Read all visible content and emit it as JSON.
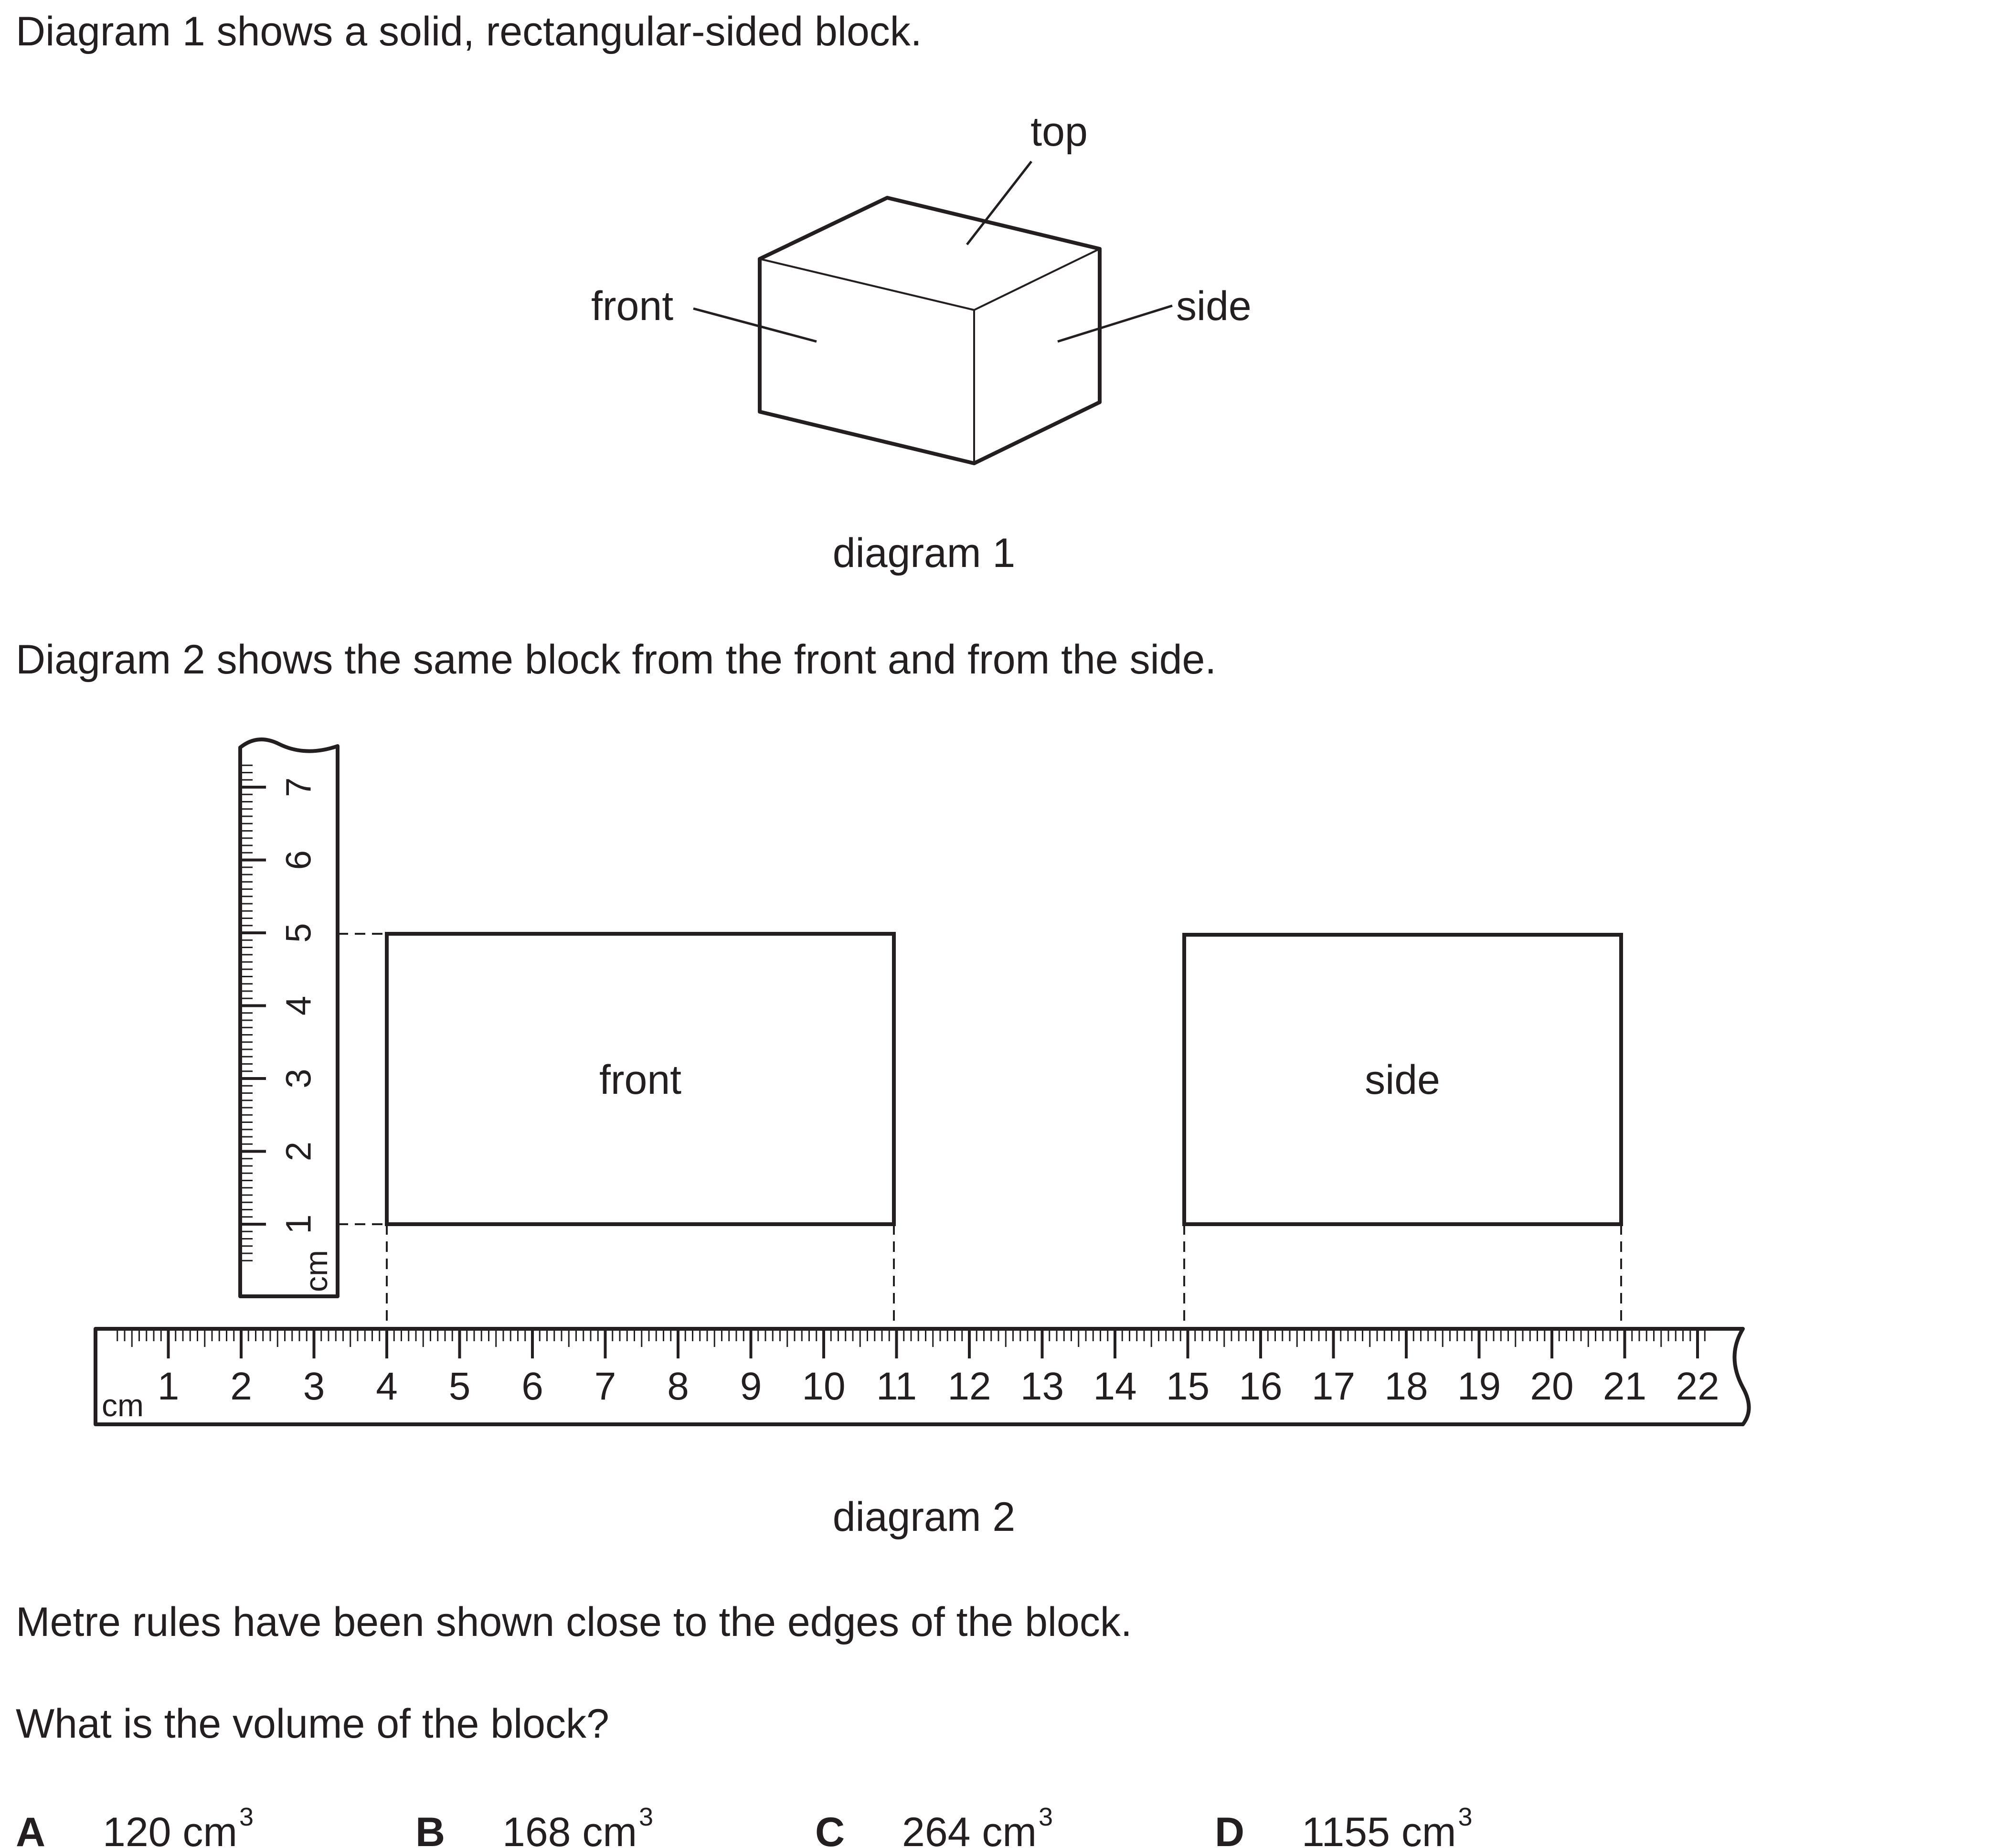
{
  "intro1": "Diagram 1 shows a solid, rectangular-sided block.",
  "diagram1": {
    "label_top": "top",
    "label_front": "front",
    "label_side": "side",
    "caption": "diagram 1"
  },
  "intro2": "Diagram 2 shows the same block from the front and from the side.",
  "diagram2": {
    "vertical_ruler": {
      "unit": "cm",
      "ticks": [
        "1",
        "2",
        "3",
        "4",
        "5",
        "6",
        "7"
      ]
    },
    "horizontal_ruler": {
      "unit": "cm",
      "ticks": [
        "1",
        "2",
        "3",
        "4",
        "5",
        "6",
        "7",
        "8",
        "9",
        "10",
        "11",
        "12",
        "13",
        "14",
        "15",
        "16",
        "17",
        "18",
        "19",
        "20",
        "21",
        "22"
      ]
    },
    "front_label": "front",
    "side_label": "side",
    "caption": "diagram 2"
  },
  "note": "Metre rules have been shown close to the edges of the block.",
  "question": "What is the volume of the block?",
  "options": [
    {
      "letter": "A",
      "value": "120 cm",
      "sup": "3"
    },
    {
      "letter": "B",
      "value": "168 cm",
      "sup": "3"
    },
    {
      "letter": "C",
      "value": "264 cm",
      "sup": "3"
    },
    {
      "letter": "D",
      "value": "1155 cm",
      "sup": "3"
    }
  ]
}
